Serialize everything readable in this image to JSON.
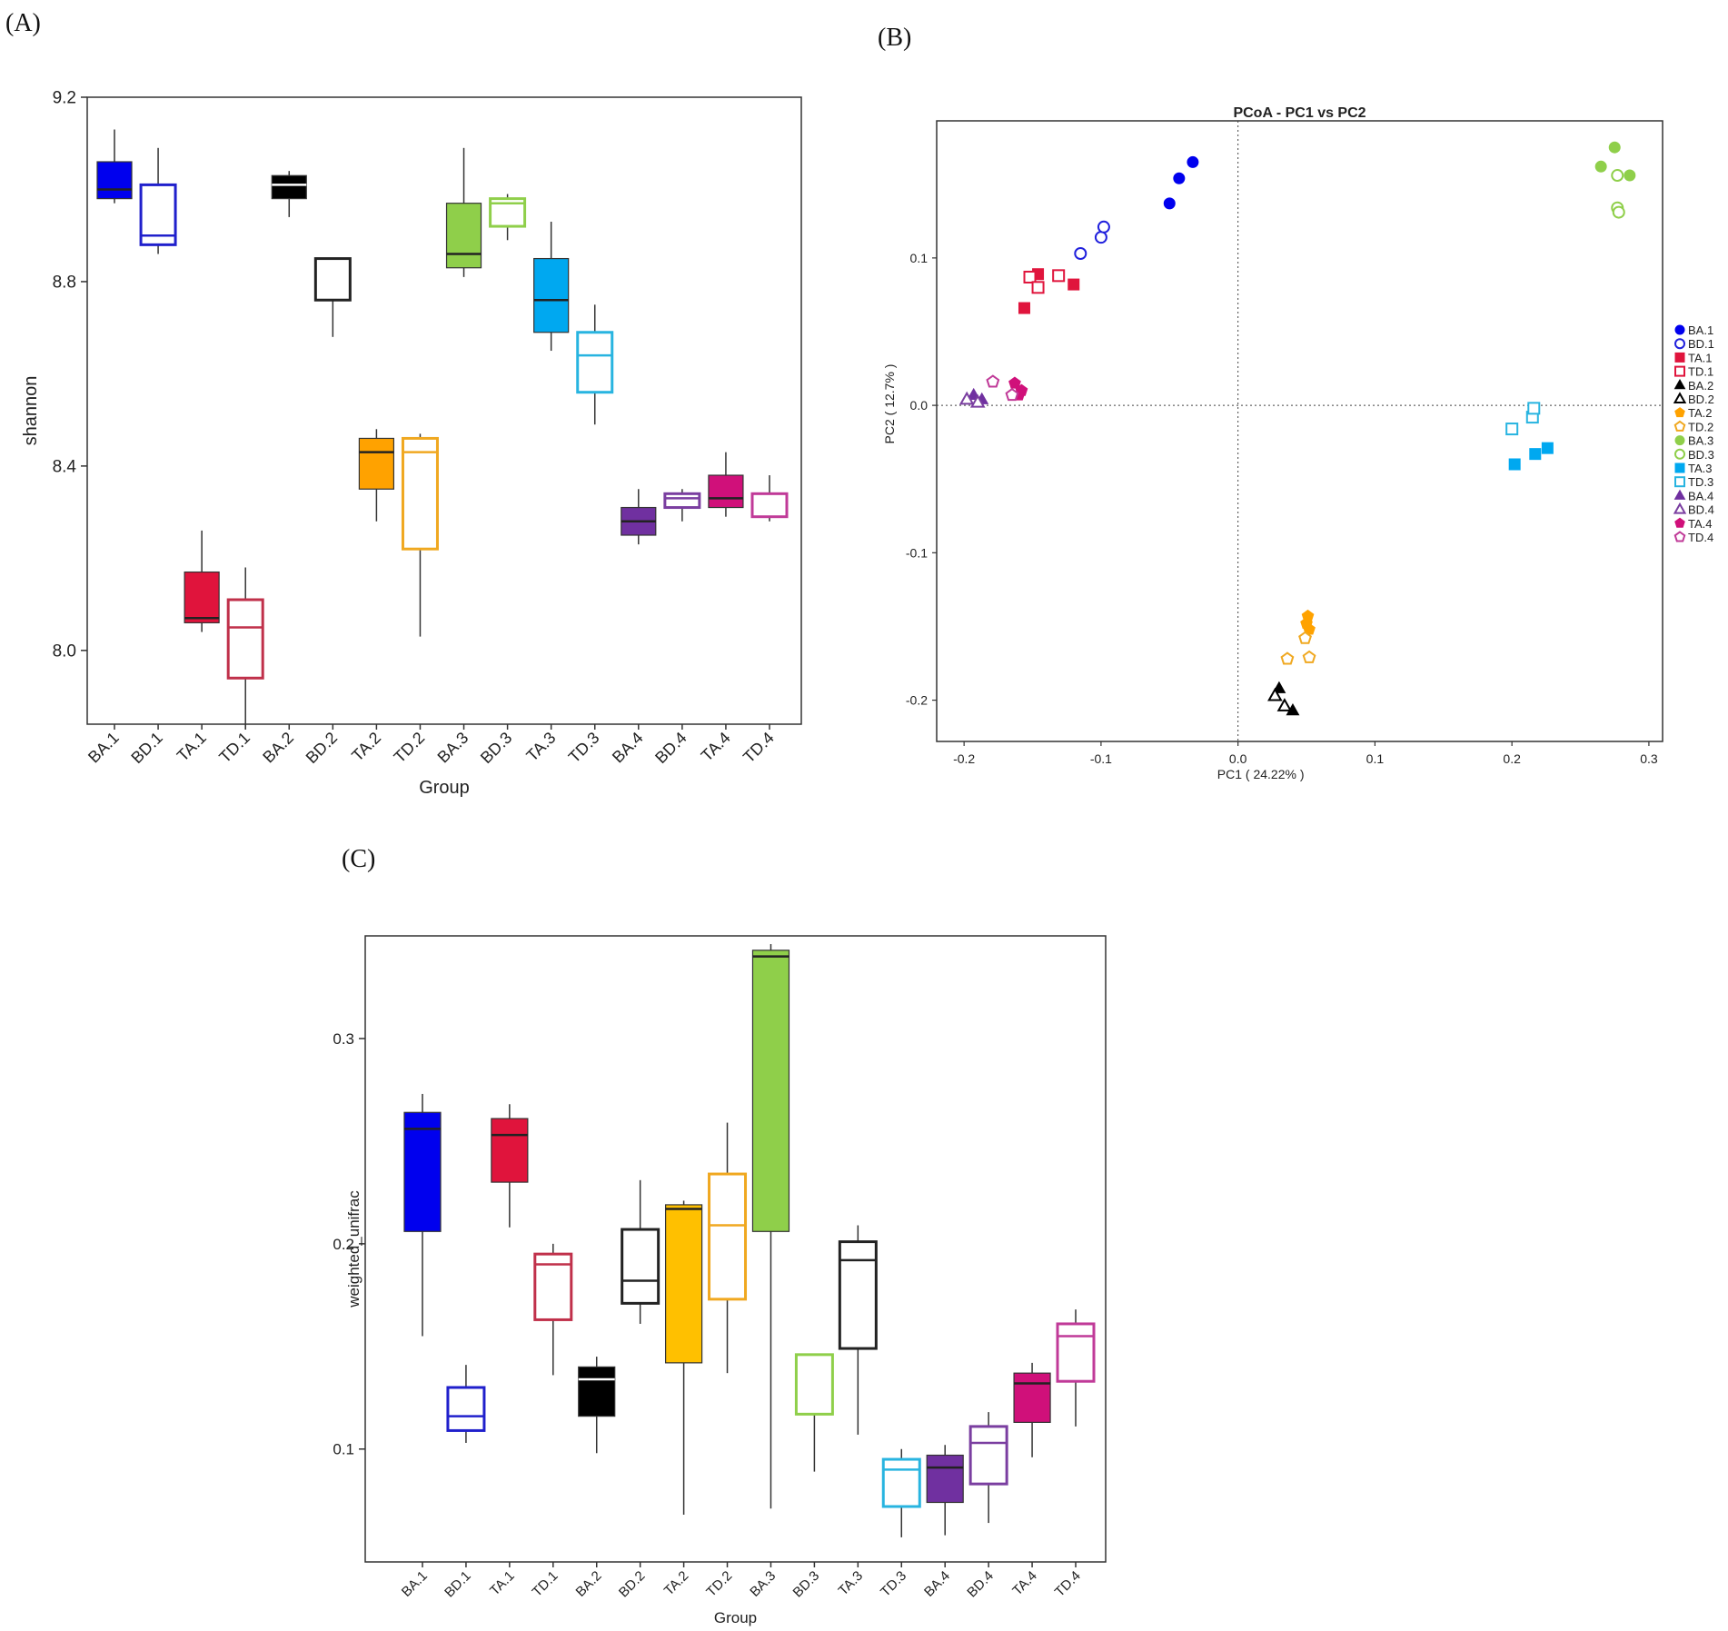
{
  "panels": {
    "a": "(A)",
    "b": "(B)",
    "c": "(C)"
  },
  "chart_data": [
    {
      "id": "A",
      "type": "box",
      "title": "",
      "xlabel": "Group",
      "ylabel": "shannon",
      "ylim": [
        7.84,
        9.2
      ],
      "yticks": [
        {
          "v": 8.0,
          "t": "8.0"
        },
        {
          "v": 8.4,
          "t": "8.4"
        },
        {
          "v": 8.8,
          "t": "8.8"
        },
        {
          "v": 9.2,
          "t": "9.2"
        }
      ],
      "categories": [
        "BA.1",
        "BD.1",
        "TA.1",
        "TD.1",
        "BA.2",
        "BD.2",
        "TA.2",
        "TD.2",
        "BA.3",
        "BD.3",
        "TA.3",
        "TD.3",
        "BA.4",
        "BD.4",
        "TA.4",
        "TD.4"
      ],
      "boxes": [
        {
          "name": "BA.1",
          "color": "#0000ee",
          "filled": true,
          "min": 8.97,
          "q1": 8.98,
          "median": 9.0,
          "q3": 9.06,
          "max": 9.13
        },
        {
          "name": "BD.1",
          "color": "#2020cc",
          "filled": false,
          "min": 8.86,
          "q1": 8.88,
          "median": 8.9,
          "q3": 9.01,
          "max": 9.09
        },
        {
          "name": "TA.1",
          "color": "#e0143c",
          "filled": true,
          "min": 8.04,
          "q1": 8.06,
          "median": 8.07,
          "q3": 8.17,
          "max": 8.26
        },
        {
          "name": "TD.1",
          "color": "#c0304a",
          "filled": false,
          "min": 7.83,
          "q1": 7.94,
          "median": 8.05,
          "q3": 8.11,
          "max": 8.18
        },
        {
          "name": "BA.2",
          "color": "#000000",
          "filled": true,
          "min": 8.94,
          "q1": 8.98,
          "median": 9.01,
          "q3": 9.03,
          "max": 9.04
        },
        {
          "name": "BD.2",
          "color": "#222222",
          "filled": false,
          "min": 8.68,
          "q1": 8.76,
          "median": 8.76,
          "q3": 8.85,
          "max": 8.85
        },
        {
          "name": "TA.2",
          "color": "#ffa200",
          "filled": true,
          "min": 8.28,
          "q1": 8.35,
          "median": 8.43,
          "q3": 8.46,
          "max": 8.48
        },
        {
          "name": "TD.2",
          "color": "#f0a820",
          "filled": false,
          "min": 8.03,
          "q1": 8.22,
          "median": 8.43,
          "q3": 8.46,
          "max": 8.47
        },
        {
          "name": "BA.3",
          "color": "#8fcf4a",
          "filled": true,
          "min": 8.81,
          "q1": 8.83,
          "median": 8.86,
          "q3": 8.97,
          "max": 9.09
        },
        {
          "name": "BD.3",
          "color": "#8fcf4a",
          "filled": false,
          "min": 8.89,
          "q1": 8.92,
          "median": 8.97,
          "q3": 8.98,
          "max": 8.99
        },
        {
          "name": "TA.3",
          "color": "#00a8f0",
          "filled": true,
          "min": 8.65,
          "q1": 8.69,
          "median": 8.76,
          "q3": 8.85,
          "max": 8.93
        },
        {
          "name": "TD.3",
          "color": "#28b4e0",
          "filled": false,
          "min": 8.49,
          "q1": 8.56,
          "median": 8.64,
          "q3": 8.69,
          "max": 8.75
        },
        {
          "name": "BA.4",
          "color": "#7030a0",
          "filled": true,
          "min": 8.23,
          "q1": 8.25,
          "median": 8.28,
          "q3": 8.31,
          "max": 8.35
        },
        {
          "name": "BD.4",
          "color": "#7a3ea0",
          "filled": false,
          "min": 8.28,
          "q1": 8.31,
          "median": 8.33,
          "q3": 8.34,
          "max": 8.35
        },
        {
          "name": "TA.4",
          "color": "#d0107a",
          "filled": true,
          "min": 8.29,
          "q1": 8.31,
          "median": 8.33,
          "q3": 8.38,
          "max": 8.43
        },
        {
          "name": "TD.4",
          "color": "#c03a98",
          "filled": false,
          "min": 8.28,
          "q1": 8.29,
          "median": 8.29,
          "q3": 8.34,
          "max": 8.38
        }
      ]
    },
    {
      "id": "B",
      "type": "scatter",
      "title": "PCoA - PC1 vs PC2",
      "xlabel": "PC1 ( 24.22% )",
      "ylabel": "PC2 ( 12.7% )",
      "xlim": [
        -0.22,
        0.31
      ],
      "ylim": [
        -0.228,
        0.193
      ],
      "xticks": [
        {
          "v": -0.2,
          "t": "-0.2"
        },
        {
          "v": -0.1,
          "t": "-0.1"
        },
        {
          "v": 0.0,
          "t": "0.0"
        },
        {
          "v": 0.1,
          "t": "0.1"
        },
        {
          "v": 0.2,
          "t": "0.2"
        },
        {
          "v": 0.3,
          "t": "0.3"
        }
      ],
      "yticks": [
        {
          "v": 0.1,
          "t": "0.1"
        },
        {
          "v": 0.0,
          "t": "0.0"
        },
        {
          "v": -0.1,
          "t": "-0.1"
        },
        {
          "v": -0.2,
          "t": "-0.2"
        }
      ],
      "series": [
        {
          "name": "BA.1",
          "color": "#0000ee",
          "shape": "circle",
          "filled": true,
          "points": [
            [
              -0.05,
              0.137
            ],
            [
              -0.043,
              0.154
            ],
            [
              -0.033,
              0.165
            ]
          ]
        },
        {
          "name": "BD.1",
          "color": "#2020dd",
          "shape": "circle",
          "filled": false,
          "points": [
            [
              -0.115,
              0.103
            ],
            [
              -0.1,
              0.114
            ],
            [
              -0.098,
              0.121
            ]
          ]
        },
        {
          "name": "TA.1",
          "color": "#e0143c",
          "shape": "square",
          "filled": true,
          "points": [
            [
              -0.156,
              0.066
            ],
            [
              -0.146,
              0.089
            ],
            [
              -0.12,
              0.082
            ]
          ]
        },
        {
          "name": "TD.1",
          "color": "#e0143c",
          "shape": "square",
          "filled": false,
          "points": [
            [
              -0.152,
              0.087
            ],
            [
              -0.146,
              0.08
            ],
            [
              -0.131,
              0.088
            ]
          ]
        },
        {
          "name": "BA.2",
          "color": "#000000",
          "shape": "triangle",
          "filled": true,
          "points": [
            [
              0.03,
              -0.192
            ],
            [
              0.04,
              -0.207
            ]
          ]
        },
        {
          "name": "BD.2",
          "color": "#000000",
          "shape": "triangle",
          "filled": false,
          "points": [
            [
              0.027,
              -0.197
            ],
            [
              0.034,
              -0.204
            ]
          ]
        },
        {
          "name": "TA.2",
          "color": "#ffa200",
          "shape": "pentagon",
          "filled": true,
          "points": [
            [
              0.051,
              -0.143
            ],
            [
              0.05,
              -0.148
            ],
            [
              0.052,
              -0.152
            ]
          ]
        },
        {
          "name": "TD.2",
          "color": "#f0a820",
          "shape": "pentagon",
          "filled": false,
          "points": [
            [
              0.049,
              -0.158
            ],
            [
              0.036,
              -0.172
            ],
            [
              0.052,
              -0.171
            ]
          ]
        },
        {
          "name": "BA.3",
          "color": "#8fcf4a",
          "shape": "circle",
          "filled": true,
          "points": [
            [
              0.265,
              0.162
            ],
            [
              0.275,
              0.175
            ],
            [
              0.286,
              0.156
            ]
          ]
        },
        {
          "name": "BD.3",
          "color": "#8fcf4a",
          "shape": "circle",
          "filled": false,
          "points": [
            [
              0.277,
              0.156
            ],
            [
              0.277,
              0.134
            ],
            [
              0.278,
              0.131
            ]
          ]
        },
        {
          "name": "TA.3",
          "color": "#00a8f0",
          "shape": "square",
          "filled": true,
          "points": [
            [
              0.202,
              -0.04
            ],
            [
              0.217,
              -0.033
            ],
            [
              0.226,
              -0.029
            ]
          ]
        },
        {
          "name": "TD.3",
          "color": "#28b4e0",
          "shape": "square",
          "filled": false,
          "points": [
            [
              0.2,
              -0.016
            ],
            [
              0.215,
              -0.008
            ],
            [
              0.216,
              -0.002
            ]
          ]
        },
        {
          "name": "BA.4",
          "color": "#7030a0",
          "shape": "triangle",
          "filled": true,
          "points": [
            [
              -0.193,
              0.007
            ],
            [
              -0.187,
              0.004
            ]
          ]
        },
        {
          "name": "BD.4",
          "color": "#7a3ea0",
          "shape": "triangle",
          "filled": false,
          "points": [
            [
              -0.198,
              0.004
            ],
            [
              -0.19,
              0.002
            ]
          ]
        },
        {
          "name": "TA.4",
          "color": "#d0107a",
          "shape": "pentagon",
          "filled": true,
          "points": [
            [
              -0.163,
              0.015
            ],
            [
              -0.158,
              0.01
            ],
            [
              -0.16,
              0.007
            ]
          ]
        },
        {
          "name": "TD.4",
          "color": "#c03a98",
          "shape": "pentagon",
          "filled": false,
          "points": [
            [
              -0.179,
              0.016
            ],
            [
              -0.165,
              0.007
            ]
          ]
        }
      ]
    },
    {
      "id": "C",
      "type": "box",
      "title": "",
      "xlabel": "Group",
      "ylabel": "weighted_unifrac",
      "ylim": [
        0.045,
        0.35
      ],
      "yticks": [
        {
          "v": 0.1,
          "t": "0.1"
        },
        {
          "v": 0.2,
          "t": "0.2"
        },
        {
          "v": 0.3,
          "t": "0.3"
        }
      ],
      "categories": [
        "BA.1",
        "BD.1",
        "TA.1",
        "TD.1",
        "BA.2",
        "BD.2",
        "TA.2",
        "TD.2",
        "BA.3",
        "BD.3",
        "TA.3",
        "TD.3",
        "BA.4",
        "BD.4",
        "TA.4",
        "TD.4"
      ],
      "boxes": [
        {
          "name": "BA.1",
          "color": "#0000ee",
          "filled": true,
          "min": 0.155,
          "q1": 0.206,
          "median": 0.256,
          "q3": 0.264,
          "max": 0.273
        },
        {
          "name": "BD.1",
          "color": "#2020cc",
          "filled": false,
          "min": 0.103,
          "q1": 0.109,
          "median": 0.116,
          "q3": 0.13,
          "max": 0.141
        },
        {
          "name": "TA.1",
          "color": "#e0143c",
          "filled": true,
          "min": 0.208,
          "q1": 0.23,
          "median": 0.253,
          "q3": 0.261,
          "max": 0.268
        },
        {
          "name": "TD.1",
          "color": "#c0304a",
          "filled": false,
          "min": 0.136,
          "q1": 0.163,
          "median": 0.19,
          "q3": 0.195,
          "max": 0.2
        },
        {
          "name": "BA.2",
          "color": "#000000",
          "filled": true,
          "min": 0.098,
          "q1": 0.116,
          "median": 0.134,
          "q3": 0.14,
          "max": 0.145
        },
        {
          "name": "BD.2",
          "color": "#222222",
          "filled": false,
          "min": 0.161,
          "q1": 0.171,
          "median": 0.182,
          "q3": 0.207,
          "max": 0.231
        },
        {
          "name": "TA.2",
          "color": "#ffc000",
          "filled": true,
          "min": 0.068,
          "q1": 0.142,
          "median": 0.217,
          "q3": 0.219,
          "max": 0.221
        },
        {
          "name": "TD.2",
          "color": "#f0a820",
          "filled": false,
          "min": 0.137,
          "q1": 0.173,
          "median": 0.209,
          "q3": 0.234,
          "max": 0.259
        },
        {
          "name": "BA.3",
          "color": "#8fcf4a",
          "filled": true,
          "min": 0.071,
          "q1": 0.206,
          "median": 0.34,
          "q3": 0.343,
          "max": 0.346
        },
        {
          "name": "BD.3",
          "color": "#8fcf4a",
          "filled": false,
          "min": 0.089,
          "q1": 0.117,
          "median": 0.117,
          "q3": 0.146,
          "max": 0.146
        },
        {
          "name": "TA.3",
          "color": "#222222",
          "filled": false,
          "min": 0.107,
          "q1": 0.149,
          "median": 0.192,
          "q3": 0.201,
          "max": 0.209
        },
        {
          "name": "TD.3",
          "color": "#28b4e0",
          "filled": false,
          "min": 0.057,
          "q1": 0.072,
          "median": 0.09,
          "q3": 0.095,
          "max": 0.1
        },
        {
          "name": "BA.4",
          "color": "#7030a0",
          "filled": true,
          "min": 0.058,
          "q1": 0.074,
          "median": 0.091,
          "q3": 0.097,
          "max": 0.102
        },
        {
          "name": "BD.4",
          "color": "#7a3ea0",
          "filled": false,
          "min": 0.064,
          "q1": 0.083,
          "median": 0.103,
          "q3": 0.111,
          "max": 0.118
        },
        {
          "name": "TA.4",
          "color": "#d0107a",
          "filled": true,
          "min": 0.096,
          "q1": 0.113,
          "median": 0.132,
          "q3": 0.137,
          "max": 0.142
        },
        {
          "name": "TD.4",
          "color": "#c03a98",
          "filled": false,
          "min": 0.111,
          "q1": 0.133,
          "median": 0.155,
          "q3": 0.161,
          "max": 0.168
        }
      ]
    }
  ]
}
